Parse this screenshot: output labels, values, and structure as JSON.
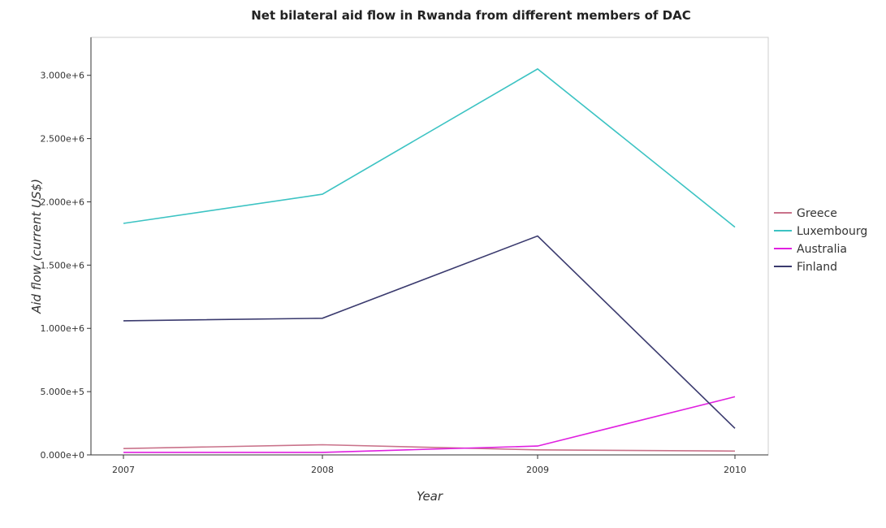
{
  "chart_data": {
    "type": "line",
    "title": "Net bilateral aid flow in Rwanda from different members of DAC",
    "xlabel": "Year",
    "ylabel": "Aid flow (current US$)",
    "categories": [
      "2007",
      "2008",
      "2009",
      "2010"
    ],
    "ylim": [
      0,
      3300000
    ],
    "yticks": [
      0,
      500000,
      1000000,
      1500000,
      2000000,
      2500000,
      3000000
    ],
    "ytick_labels": [
      "0.000e+0",
      "5.000e+5",
      "1.000e+6",
      "1.500e+6",
      "2.000e+6",
      "2.500e+6",
      "3.000e+6"
    ],
    "grid": false,
    "legend_position": "right",
    "series": [
      {
        "name": "Greece",
        "color": "#c9728a",
        "values": [
          50000,
          80000,
          40000,
          30000
        ]
      },
      {
        "name": "Luxembourg",
        "color": "#3cc3c3",
        "values": [
          1830000,
          2060000,
          3050000,
          1800000
        ]
      },
      {
        "name": "Australia",
        "color": "#e020e0",
        "values": [
          20000,
          20000,
          70000,
          460000
        ]
      },
      {
        "name": "Finland",
        "color": "#3a3a6e",
        "values": [
          1060000,
          1080000,
          1730000,
          210000
        ]
      }
    ]
  }
}
